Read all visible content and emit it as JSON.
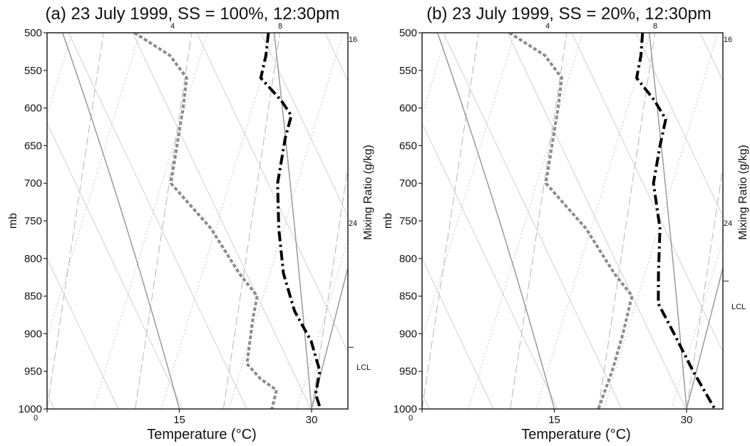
{
  "chart_data": [
    {
      "type": "line",
      "subtype": "skew-T log-P thermodynamic diagram",
      "title": "(a) 23 July 1999, SS = 100%, 12:30pm",
      "xlabel": "Temperature (°C)",
      "ylabel": "mb",
      "y2label": "Mixing Ratio (g/kg)",
      "x_ticks": [
        "0",
        "15",
        "30"
      ],
      "y_ticks": [
        "500",
        "550",
        "600",
        "650",
        "700",
        "750",
        "800",
        "850",
        "900",
        "950",
        "1000"
      ],
      "mixing_ratio_ticks": [
        "4",
        "8",
        "16",
        "24"
      ],
      "lcl_label": "LCL",
      "lcl_pressure": 918,
      "series": [
        {
          "style": "black dash-dot",
          "pressure": [
            500,
            530,
            560,
            590,
            610,
            640,
            700,
            760,
            820,
            870,
            910,
            950,
            980,
            1000
          ],
          "x": [
            18.7,
            18.8,
            18.6,
            21.3,
            22.7,
            22.4,
            22.3,
            23.2,
            24.5,
            26.4,
            28.8,
            30.3,
            30.2,
            31.0
          ]
        },
        {
          "style": "grey dashed",
          "pressure": [
            500,
            530,
            560,
            600,
            700,
            760,
            820,
            850,
            880,
            940,
            960,
            975,
            1000
          ],
          "x": [
            3.5,
            7.9,
            10.2,
            10.3,
            10.2,
            15.5,
            19.5,
            21.9,
            21.8,
            21.9,
            23.7,
            25.7,
            25.5
          ]
        }
      ]
    },
    {
      "type": "line",
      "subtype": "skew-T log-P thermodynamic diagram",
      "title": "(b) 23 July 1999, SS = 20%, 12:30pm",
      "xlabel": "Temperature (°C)",
      "ylabel": "mb",
      "y2label": "Mixing Ratio (g/kg)",
      "x_ticks": [
        "0",
        "15",
        "30"
      ],
      "y_ticks": [
        "500",
        "550",
        "600",
        "650",
        "700",
        "750",
        "800",
        "850",
        "900",
        "950",
        "1000"
      ],
      "mixing_ratio_ticks": [
        "4",
        "8",
        "16",
        "24"
      ],
      "lcl_label": "LCL",
      "lcl_pressure": 830,
      "series": [
        {
          "style": "black dash-dot",
          "pressure": [
            500,
            530,
            560,
            590,
            615,
            650,
            700,
            760,
            820,
            860,
            900,
            950,
            1000
          ],
          "x": [
            18.6,
            18.8,
            18.7,
            21.1,
            22.7,
            22.5,
            22.4,
            23.9,
            24.5,
            25.0,
            27.3,
            30.1,
            33.2
          ]
        },
        {
          "style": "grey dashed",
          "pressure": [
            500,
            530,
            560,
            600,
            700,
            760,
            820,
            850,
            860,
            900,
            950,
            1000
          ],
          "x": [
            3.5,
            7.9,
            10.2,
            10.3,
            10.2,
            15.5,
            19.5,
            21.9,
            21.8,
            21.5,
            20.9,
            20.0
          ]
        }
      ]
    }
  ]
}
